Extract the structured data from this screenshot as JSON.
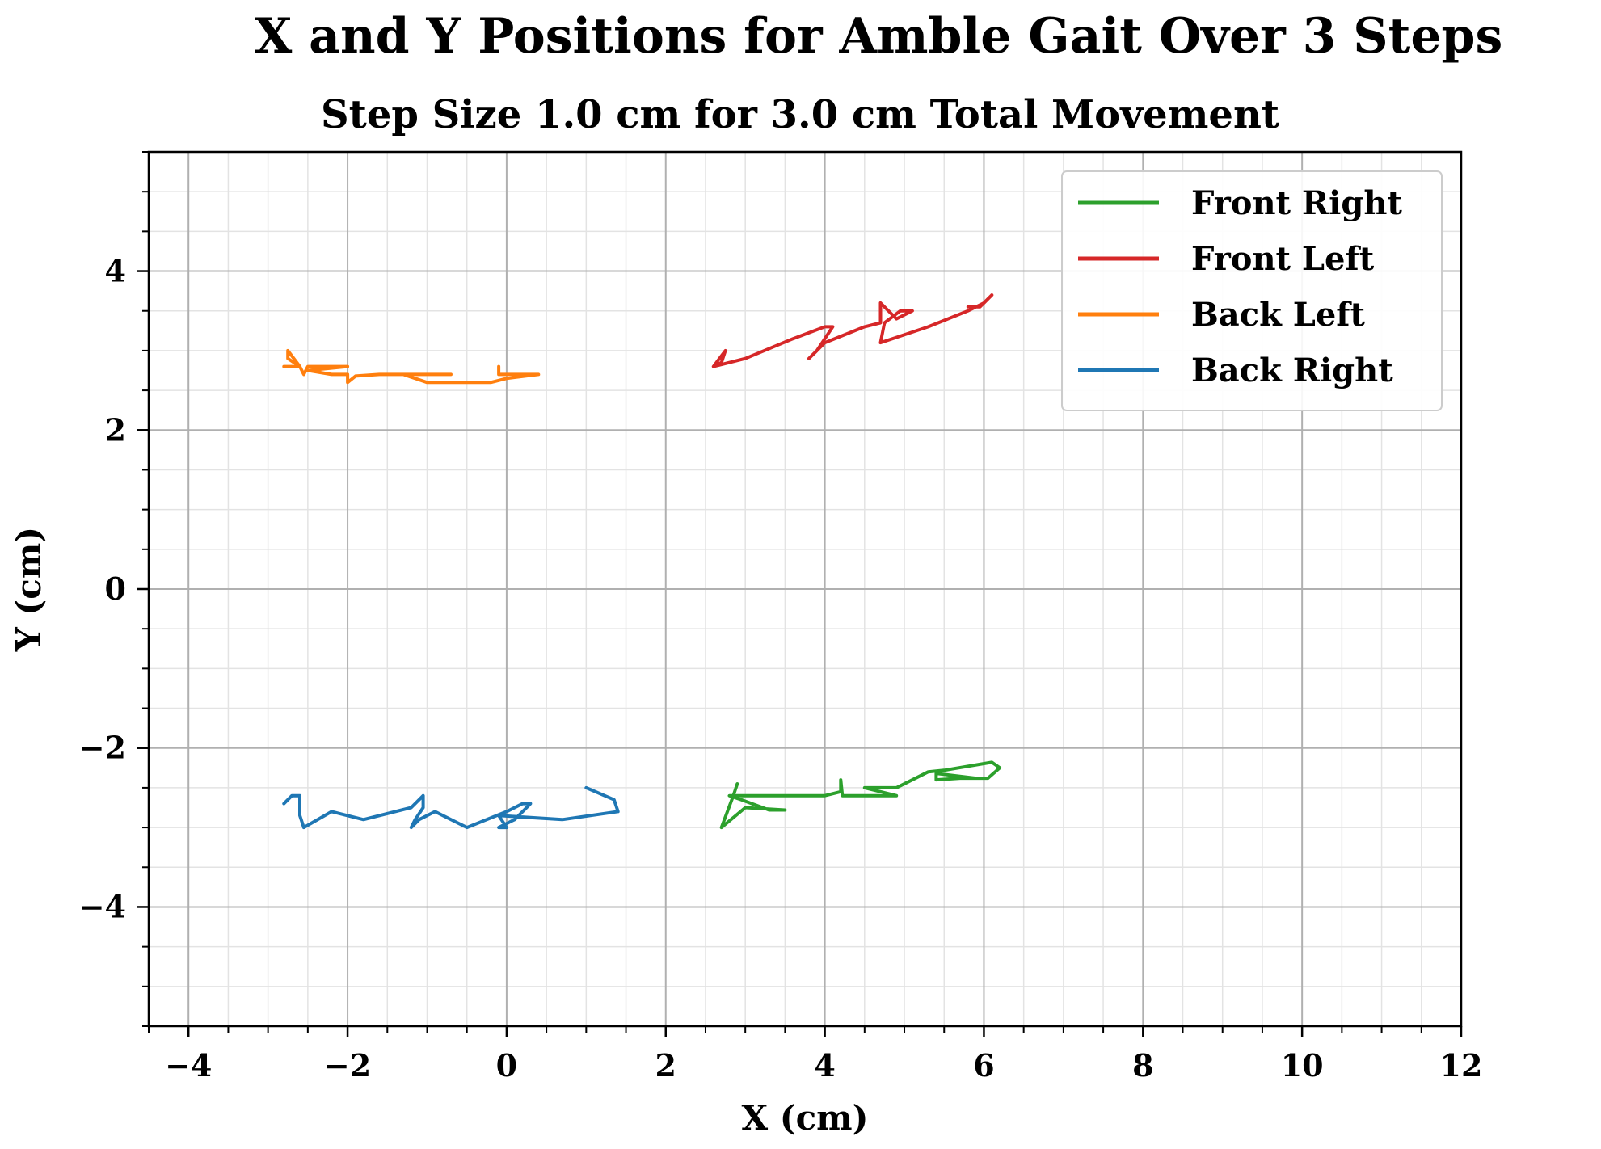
{
  "chart_data": {
    "type": "line",
    "title": "X and Y Positions for Amble Gait Over 3 Steps",
    "subtitle": "Step Size 1.0 cm for 3.0 cm Total Movement",
    "xlabel": "X (cm)",
    "ylabel": "Y (cm)",
    "xlim": [
      -4.5,
      12
    ],
    "ylim": [
      -5.5,
      5.5
    ],
    "xticks": [
      -4,
      -2,
      0,
      2,
      4,
      6,
      8,
      10,
      12
    ],
    "yticks": [
      -4,
      -2,
      0,
      2,
      4
    ],
    "xtick_labels": [
      "−4",
      "−2",
      "0",
      "2",
      "4",
      "6",
      "8",
      "10",
      "12"
    ],
    "ytick_labels": [
      "−4",
      "−2",
      "0",
      "2",
      "4"
    ],
    "grid": true,
    "minor_grid": true,
    "legend_position": "top-right",
    "series": [
      {
        "name": "Front Right",
        "color": "#2ca02c",
        "points": [
          [
            2.9,
            -2.45
          ],
          [
            2.85,
            -2.6
          ],
          [
            2.7,
            -3.0
          ],
          [
            3.0,
            -2.75
          ],
          [
            3.5,
            -2.78
          ],
          [
            3.3,
            -2.78
          ],
          [
            2.95,
            -2.65
          ],
          [
            2.8,
            -2.6
          ],
          [
            3.5,
            -2.6
          ],
          [
            4.0,
            -2.6
          ],
          [
            4.2,
            -2.55
          ],
          [
            4.2,
            -2.4
          ],
          [
            4.22,
            -2.6
          ],
          [
            4.9,
            -2.6
          ],
          [
            4.5,
            -2.5
          ],
          [
            4.9,
            -2.5
          ],
          [
            5.3,
            -2.3
          ],
          [
            5.5,
            -2.28
          ],
          [
            6.1,
            -2.18
          ],
          [
            6.2,
            -2.25
          ],
          [
            6.05,
            -2.38
          ],
          [
            5.7,
            -2.38
          ],
          [
            5.4,
            -2.4
          ],
          [
            5.4,
            -2.32
          ],
          [
            5.9,
            -2.38
          ]
        ]
      },
      {
        "name": "Front Left",
        "color": "#d62728",
        "points": [
          [
            2.6,
            2.8
          ],
          [
            2.7,
            2.85
          ],
          [
            2.75,
            3.0
          ],
          [
            2.6,
            2.8
          ],
          [
            3.0,
            2.9
          ],
          [
            3.6,
            3.15
          ],
          [
            4.0,
            3.3
          ],
          [
            4.1,
            3.3
          ],
          [
            3.9,
            3.0
          ],
          [
            3.8,
            2.9
          ],
          [
            4.0,
            3.1
          ],
          [
            4.5,
            3.3
          ],
          [
            4.7,
            3.35
          ],
          [
            4.7,
            3.6
          ],
          [
            4.9,
            3.4
          ],
          [
            5.1,
            3.5
          ],
          [
            4.95,
            3.5
          ],
          [
            4.75,
            3.35
          ],
          [
            4.7,
            3.1
          ],
          [
            5.3,
            3.3
          ],
          [
            5.8,
            3.5
          ],
          [
            6.0,
            3.6
          ],
          [
            6.1,
            3.7
          ],
          [
            5.95,
            3.55
          ],
          [
            5.8,
            3.55
          ]
        ]
      },
      {
        "name": "Back Left",
        "color": "#ff7f0e",
        "points": [
          [
            -2.8,
            2.8
          ],
          [
            -2.6,
            2.8
          ],
          [
            -2.75,
            2.9
          ],
          [
            -2.75,
            3.0
          ],
          [
            -2.6,
            2.8
          ],
          [
            -2.55,
            2.7
          ],
          [
            -2.5,
            2.8
          ],
          [
            -2.2,
            2.8
          ],
          [
            -2.0,
            2.8
          ],
          [
            -2.5,
            2.75
          ],
          [
            -2.2,
            2.7
          ],
          [
            -2.0,
            2.7
          ],
          [
            -2.0,
            2.6
          ],
          [
            -1.9,
            2.68
          ],
          [
            -1.6,
            2.7
          ],
          [
            -0.7,
            2.7
          ],
          [
            -1.3,
            2.7
          ],
          [
            -1.0,
            2.6
          ],
          [
            -0.2,
            2.6
          ],
          [
            0.0,
            2.65
          ],
          [
            0.4,
            2.7
          ],
          [
            -0.1,
            2.7
          ],
          [
            -0.1,
            2.8
          ]
        ]
      },
      {
        "name": "Back Right",
        "color": "#1f77b4",
        "points": [
          [
            -2.8,
            -2.7
          ],
          [
            -2.7,
            -2.6
          ],
          [
            -2.6,
            -2.6
          ],
          [
            -2.6,
            -2.85
          ],
          [
            -2.55,
            -3.0
          ],
          [
            -2.2,
            -2.8
          ],
          [
            -1.8,
            -2.9
          ],
          [
            -1.2,
            -2.75
          ],
          [
            -1.05,
            -2.6
          ],
          [
            -1.05,
            -2.75
          ],
          [
            -1.15,
            -2.9
          ],
          [
            -1.2,
            -3.0
          ],
          [
            -1.1,
            -2.9
          ],
          [
            -0.9,
            -2.8
          ],
          [
            -0.5,
            -3.0
          ],
          [
            0.0,
            -2.8
          ],
          [
            0.2,
            -2.7
          ],
          [
            0.3,
            -2.7
          ],
          [
            0.1,
            -2.9
          ],
          [
            -0.1,
            -3.0
          ],
          [
            0.0,
            -3.0
          ],
          [
            -0.1,
            -2.85
          ],
          [
            0.7,
            -2.9
          ],
          [
            1.4,
            -2.8
          ],
          [
            1.35,
            -2.65
          ],
          [
            1.0,
            -2.5
          ]
        ]
      }
    ]
  }
}
